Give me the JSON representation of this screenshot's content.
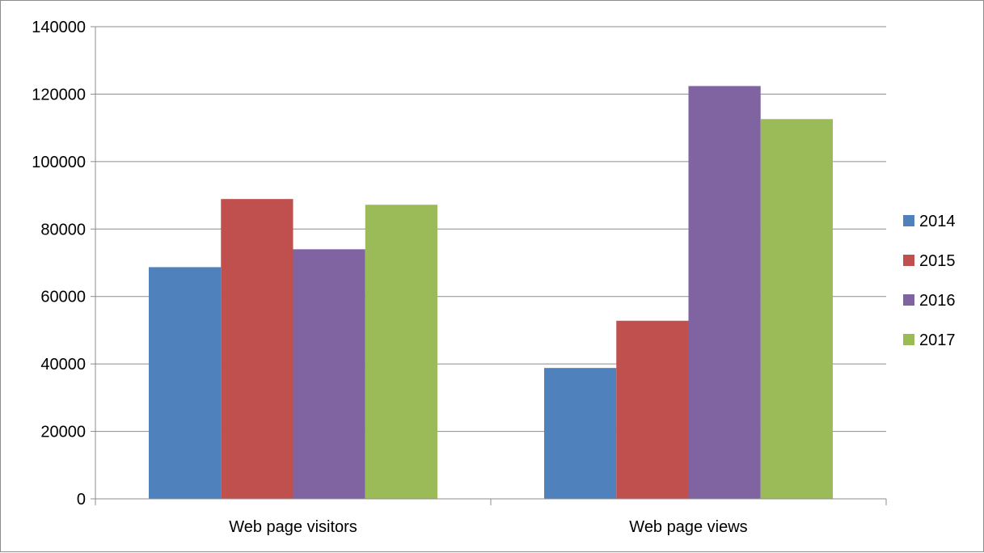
{
  "chart_data": {
    "type": "bar",
    "categories": [
      "Web page visitors",
      "Web page views"
    ],
    "series": [
      {
        "name": "2014",
        "color": "#4f81bd",
        "values": [
          68700,
          38800
        ]
      },
      {
        "name": "2015",
        "color": "#c0504d",
        "values": [
          88900,
          52800
        ]
      },
      {
        "name": "2016",
        "color": "#8064a2",
        "values": [
          74000,
          122400
        ]
      },
      {
        "name": "2017",
        "color": "#9bbb59",
        "values": [
          87200,
          112600
        ]
      }
    ],
    "ylim": [
      0,
      140000
    ],
    "yticks": [
      "0",
      "20000",
      "40000",
      "60000",
      "80000",
      "100000",
      "120000",
      "140000"
    ],
    "grid": true,
    "legend": "right",
    "title": "",
    "xlabel": "",
    "ylabel": ""
  }
}
